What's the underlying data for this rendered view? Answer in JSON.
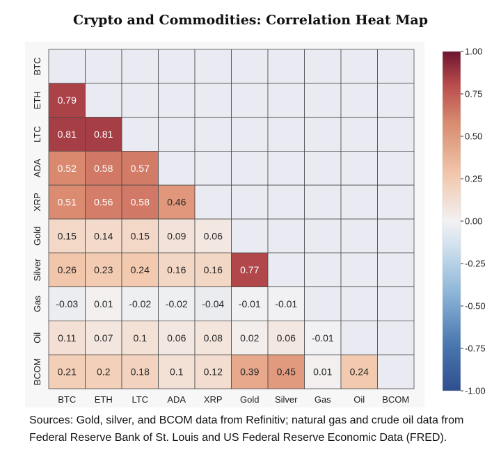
{
  "title": "Crypto and Commodities: Correlation Heat Map",
  "source_lines": [
    "Sources: Gold, silver, and BCOM data from Refinitiv; natural gas and crude oil data from",
    "Federal Reserve Bank of St. Louis and US Federal Reserve Economic Data (FRED)."
  ],
  "chart_data": {
    "type": "heatmap",
    "title": "Crypto and Commodities: Correlation Heat Map",
    "xlabel": "",
    "ylabel": "",
    "labels": [
      "BTC",
      "ETH",
      "LTC",
      "ADA",
      "XRP",
      "Gold",
      "Silver",
      "Gas",
      "Oil",
      "BCOM"
    ],
    "lower_triangle": [
      [],
      [
        "0.79"
      ],
      [
        "0.81",
        "0.81"
      ],
      [
        "0.52",
        "0.58",
        "0.57"
      ],
      [
        "0.51",
        "0.56",
        "0.58",
        "0.46"
      ],
      [
        "0.15",
        "0.14",
        "0.15",
        "0.09",
        "0.06"
      ],
      [
        "0.26",
        "0.23",
        "0.24",
        "0.16",
        "0.16",
        "0.77"
      ],
      [
        "-0.03",
        "0.01",
        "-0.02",
        "-0.02",
        "-0.04",
        "-0.01",
        "-0.01"
      ],
      [
        "0.11",
        "0.07",
        "0.1",
        "0.06",
        "0.08",
        "0.02",
        "0.06",
        "-0.01"
      ],
      [
        "0.21",
        "0.2",
        "0.18",
        "0.1",
        "0.12",
        "0.39",
        "0.45",
        "0.01",
        "0.24"
      ]
    ],
    "mask": "upper triangle and diagonal (blank)",
    "colorbar": {
      "range": [
        -1.0,
        1.0
      ],
      "ticks": [
        "1.00",
        "0.75",
        "0.50",
        "0.25",
        "0.00",
        "-0.25",
        "-0.50",
        "-0.75",
        "-1.00"
      ],
      "colormap": [
        "#3b5fa0",
        "#6a9bc9",
        "#b8d3e8",
        "#eef0f6",
        "#f3c9af",
        "#d68870",
        "#b44a4b",
        "#7b1e36"
      ]
    },
    "grid": true
  }
}
